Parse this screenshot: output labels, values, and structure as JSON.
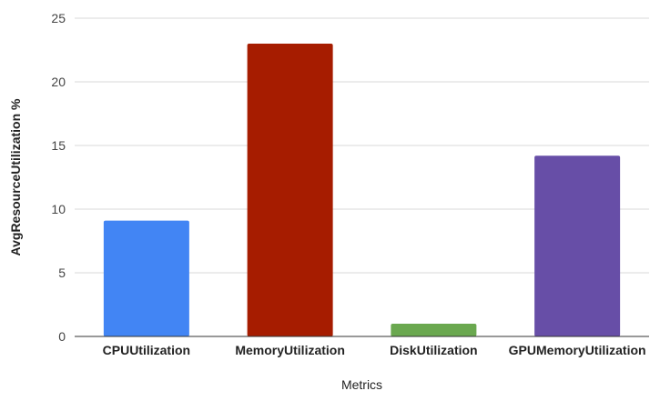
{
  "chart_data": {
    "type": "bar",
    "categories": [
      "CPUUtilization",
      "MemoryUtilization",
      "DiskUtilization",
      "GPUMemoryUtilization"
    ],
    "values": [
      9.1,
      23.0,
      1.0,
      14.2
    ],
    "colors": [
      "#4285f4",
      "#a61c00",
      "#6aa84f",
      "#674ea7"
    ],
    "title": "",
    "xlabel": "Metrics",
    "ylabel": "AvgResourceUtilization %",
    "ylim": [
      0,
      25
    ],
    "yticks": [
      0,
      5,
      10,
      15,
      20,
      25
    ],
    "grid": true,
    "legend": "none"
  }
}
